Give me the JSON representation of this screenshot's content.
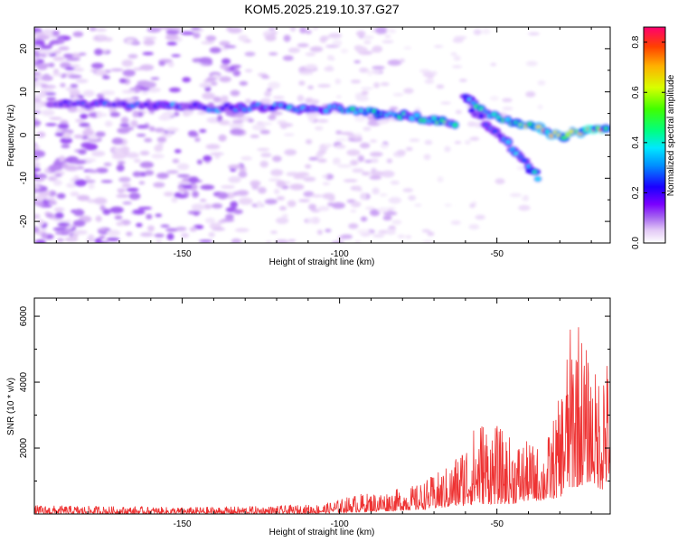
{
  "chart_data": [
    {
      "type": "heatmap",
      "title": "KOM5.2025.219.10.37.G27",
      "xlabel": "Height of straight line (km)",
      "ylabel": "Frequency (Hz)",
      "xlim": [
        -197,
        -14
      ],
      "ylim": [
        -25,
        25
      ],
      "x_ticks": [
        -150,
        -100,
        -50
      ],
      "x_tick_labels": [
        "-150",
        "-100",
        "-50"
      ],
      "y_ticks": [
        -20,
        -10,
        0,
        10,
        20
      ],
      "y_tick_labels": [
        "-20",
        "-10",
        "0",
        "10",
        "20"
      ],
      "colorbar": {
        "label": "Normalized spectral amplitude",
        "range": [
          0.0,
          0.86
        ],
        "ticks": [
          0.0,
          0.2,
          0.4,
          0.6,
          0.8
        ],
        "tick_labels": [
          "0.0",
          "0.2",
          "0.4",
          "0.6",
          "0.8"
        ],
        "colormap": [
          "#ffffff",
          "#e2c8f6",
          "#a463f0",
          "#7a00ff",
          "#1a00ff",
          "#0090ff",
          "#00e8ff",
          "#00ff80",
          "#40ff00",
          "#d8ff00",
          "#ffb000",
          "#ff4000",
          "#ff0070"
        ]
      },
      "ridges": [
        {
          "name": "main-arrival",
          "points": [
            [
              -190,
              7.5
            ],
            [
              -160,
              6.8
            ],
            [
              -140,
              6.3
            ],
            [
              -120,
              6.5
            ],
            [
              -100,
              6.0
            ],
            [
              -85,
              5.0
            ],
            [
              -70,
              3.5
            ],
            [
              -62,
              2.5
            ]
          ],
          "peak": 0.55
        },
        {
          "name": "upper-branch",
          "points": [
            [
              -60,
              9
            ],
            [
              -55,
              6
            ],
            [
              -48,
              3.5
            ],
            [
              -38,
              2.0
            ],
            [
              -30,
              -0.5
            ],
            [
              -22,
              1.0
            ],
            [
              -14,
              2.0
            ]
          ],
          "peak": 0.86
        },
        {
          "name": "lower-branch",
          "points": [
            [
              -58,
              6
            ],
            [
              -52,
              2
            ],
            [
              -45,
              -3
            ],
            [
              -40,
              -7
            ],
            [
              -36,
              -11
            ]
          ],
          "peak": 0.45
        }
      ]
    },
    {
      "type": "line",
      "xlabel": "Height of straight line (km)",
      "ylabel": "SNR (10 * v/v)",
      "xlim": [
        -197,
        -14
      ],
      "ylim": [
        0,
        6550
      ],
      "x_ticks": [
        -150,
        -100,
        -50
      ],
      "x_tick_labels": [
        "-150",
        "-100",
        "-50"
      ],
      "y_ticks": [
        2000,
        4000,
        6000
      ],
      "y_tick_labels": [
        "2000",
        "4000",
        "6000"
      ],
      "series": [
        {
          "name": "SNR",
          "color": "#ee3333",
          "envelope": {
            "x": [
              -197,
              -150,
              -120,
              -105,
              -95,
              -85,
              -75,
              -65,
              -60,
              -55,
              -50,
              -45,
              -40,
              -35,
              -30,
              -28,
              -25,
              -22,
              -20,
              -18,
              -16,
              -14
            ],
            "min": [
              0,
              0,
              0,
              20,
              50,
              80,
              120,
              200,
              250,
              300,
              300,
              300,
              400,
              400,
              500,
              700,
              800,
              900,
              1000,
              800,
              700,
              1200
            ],
            "max": [
              270,
              210,
              250,
              310,
              600,
              700,
              900,
              1500,
              2300,
              3000,
              2700,
              2300,
              2200,
              2000,
              3600,
              5000,
              6550,
              5200,
              4500,
              4300,
              5600,
              4000
            ]
          }
        }
      ]
    }
  ]
}
